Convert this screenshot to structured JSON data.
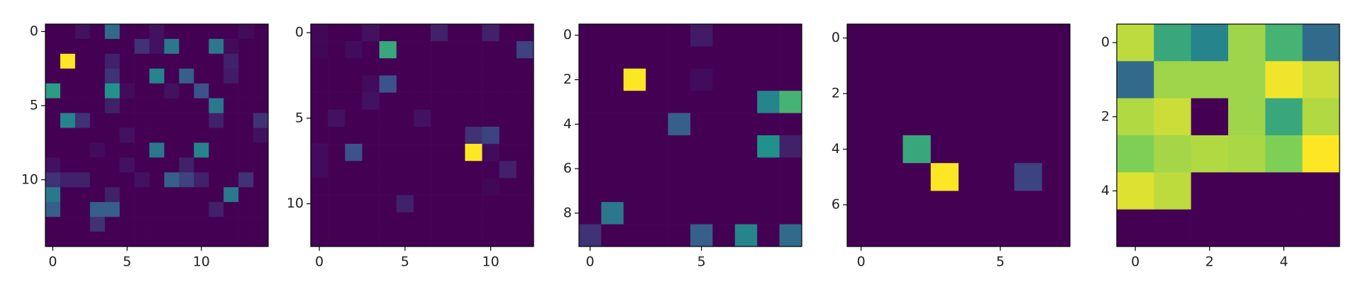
{
  "chart_data": [
    {
      "type": "heatmap",
      "colormap": "viridis",
      "clim": [
        0,
        1
      ],
      "xlim": [
        -0.5,
        14.5
      ],
      "ylim": [
        14.5,
        -0.5
      ],
      "xticks": [
        0,
        5,
        10
      ],
      "yticks": [
        0,
        5,
        10
      ],
      "values": [
        [
          0,
          0,
          0.05,
          0,
          0.35,
          0,
          0,
          0.05,
          0,
          0,
          0,
          0,
          0,
          0.03,
          0
        ],
        [
          0,
          0,
          0,
          0,
          0,
          0,
          0.15,
          0.05,
          0.4,
          0,
          0,
          0.4,
          0.03,
          0,
          0
        ],
        [
          0,
          1,
          0,
          0,
          0.1,
          0,
          0,
          0,
          0,
          0,
          0,
          0,
          0.1,
          0,
          0
        ],
        [
          0,
          0,
          0,
          0,
          0.15,
          0,
          0,
          0.45,
          0,
          0.3,
          0,
          0,
          0.08,
          0,
          0
        ],
        [
          0.55,
          0,
          0,
          0,
          0.5,
          0.03,
          0,
          0,
          0.05,
          0,
          0.25,
          0,
          0,
          0,
          0
        ],
        [
          0,
          0,
          0,
          0,
          0.1,
          0,
          0,
          0,
          0,
          0,
          0,
          0.4,
          0,
          0,
          0
        ],
        [
          0,
          0.45,
          0.15,
          0,
          0,
          0,
          0,
          0,
          0,
          0,
          0,
          0.1,
          0,
          0,
          0.15
        ],
        [
          0,
          0,
          0,
          0,
          0,
          0.05,
          0,
          0,
          0,
          0,
          0,
          0,
          0,
          0,
          0.05
        ],
        [
          0,
          0,
          0,
          0.03,
          0,
          0,
          0,
          0.4,
          0,
          0,
          0.45,
          0,
          0,
          0,
          0
        ],
        [
          0.05,
          0,
          0,
          0,
          0,
          0.05,
          0,
          0,
          0,
          0.1,
          0,
          0,
          0,
          0,
          0
        ],
        [
          0.15,
          0.1,
          0.1,
          0,
          0,
          0,
          0.05,
          0,
          0.3,
          0.2,
          0.1,
          0,
          0,
          0.15,
          0
        ],
        [
          0.4,
          0,
          0,
          0,
          0.1,
          0,
          0,
          0,
          0,
          0,
          0,
          0,
          0.4,
          0,
          0
        ],
        [
          0.3,
          0,
          0,
          0.3,
          0.3,
          0,
          0,
          0,
          0,
          0,
          0,
          0.1,
          0,
          0,
          0
        ],
        [
          0,
          0,
          0,
          0.15,
          0,
          0,
          0,
          0,
          0,
          0,
          0,
          0,
          0,
          0,
          0
        ],
        [
          0,
          0,
          0,
          0,
          0,
          0,
          0,
          0,
          0,
          0,
          0,
          0,
          0,
          0,
          0
        ]
      ]
    },
    {
      "type": "heatmap",
      "colormap": "viridis",
      "clim": [
        0,
        1
      ],
      "xlim": [
        -0.5,
        12.5
      ],
      "ylim": [
        12.5,
        -0.5
      ],
      "xticks": [
        0,
        5,
        10
      ],
      "yticks": [
        0,
        5,
        10
      ],
      "values": [
        [
          0.02,
          0,
          0,
          0.05,
          0,
          0,
          0,
          0.1,
          0,
          0,
          0.1,
          0,
          0
        ],
        [
          0.02,
          0,
          0.03,
          0,
          0.6,
          0,
          0,
          0,
          0,
          0,
          0,
          0,
          0.2
        ],
        [
          0,
          0,
          0,
          0,
          0,
          0,
          0,
          0,
          0,
          0,
          0,
          0,
          0
        ],
        [
          0,
          0,
          0,
          0.03,
          0.25,
          0,
          0,
          0,
          0,
          0,
          0,
          0,
          0
        ],
        [
          0,
          0,
          0,
          0.05,
          0,
          0,
          0,
          0,
          0,
          0,
          0,
          0,
          0
        ],
        [
          0,
          0.05,
          0,
          0,
          0,
          0,
          0.05,
          0,
          0,
          0,
          0,
          0,
          0
        ],
        [
          0,
          0,
          0,
          0,
          0,
          0,
          0,
          0,
          0,
          0.15,
          0.2,
          0,
          0
        ],
        [
          0.03,
          0,
          0.25,
          0,
          0,
          0,
          0,
          0,
          0,
          1,
          0.03,
          0,
          0
        ],
        [
          0.03,
          0,
          0,
          0,
          0,
          0,
          0,
          0,
          0,
          0,
          0,
          0.1,
          0
        ],
        [
          0,
          0,
          0,
          0,
          0,
          0,
          0,
          0,
          0,
          0,
          0.02,
          0,
          0
        ],
        [
          0,
          0,
          0,
          0,
          0,
          0.1,
          0,
          0,
          0,
          0,
          0,
          0,
          0
        ],
        [
          0,
          0,
          0,
          0,
          0,
          0,
          0,
          0,
          0,
          0,
          0,
          0,
          0
        ],
        [
          0,
          0,
          0,
          0,
          0,
          0,
          0,
          0,
          0,
          0,
          0,
          0,
          0
        ]
      ]
    },
    {
      "type": "heatmap",
      "colormap": "viridis",
      "clim": [
        0,
        1
      ],
      "xlim": [
        -0.5,
        9.5
      ],
      "ylim": [
        9.5,
        -0.5
      ],
      "xticks": [
        0,
        5
      ],
      "yticks": [
        0,
        2,
        4,
        6,
        8
      ],
      "values": [
        [
          0,
          0,
          0,
          0,
          0,
          0.08,
          0,
          0,
          0,
          0
        ],
        [
          0,
          0,
          0,
          0,
          0,
          0,
          0,
          0,
          0,
          0
        ],
        [
          0,
          0,
          1,
          0,
          0,
          0.03,
          0,
          0,
          0,
          0
        ],
        [
          0,
          0,
          0,
          0,
          0,
          0,
          0,
          0,
          0.45,
          0.65
        ],
        [
          0,
          0,
          0,
          0,
          0.3,
          0,
          0,
          0,
          0,
          0
        ],
        [
          0,
          0,
          0,
          0,
          0,
          0,
          0,
          0,
          0.5,
          0.1
        ],
        [
          0,
          0,
          0,
          0,
          0,
          0,
          0,
          0,
          0,
          0
        ],
        [
          0,
          0,
          0,
          0,
          0,
          0,
          0,
          0,
          0,
          0
        ],
        [
          0,
          0.4,
          0,
          0,
          0,
          0,
          0,
          0,
          0,
          0
        ],
        [
          0.15,
          0,
          0,
          0,
          0,
          0.3,
          0,
          0.45,
          0,
          0.35
        ]
      ]
    },
    {
      "type": "heatmap",
      "colormap": "viridis",
      "clim": [
        0,
        1
      ],
      "xlim": [
        -0.5,
        7.5
      ],
      "ylim": [
        7.5,
        -0.5
      ],
      "xticks": [
        0,
        5
      ],
      "yticks": [
        0,
        2,
        4,
        6
      ],
      "values": [
        [
          0,
          0,
          0,
          0,
          0,
          0,
          0,
          0
        ],
        [
          0,
          0,
          0,
          0,
          0,
          0,
          0,
          0
        ],
        [
          0,
          0,
          0,
          0,
          0,
          0,
          0,
          0
        ],
        [
          0,
          0,
          0,
          0,
          0,
          0,
          0,
          0
        ],
        [
          0,
          0,
          0.6,
          0,
          0,
          0,
          0,
          0
        ],
        [
          0,
          0,
          0,
          1,
          0,
          0,
          0.2,
          0
        ],
        [
          0,
          0,
          0,
          0,
          0,
          0,
          0,
          0
        ],
        [
          0,
          0,
          0,
          0,
          0,
          0,
          0,
          0
        ]
      ]
    },
    {
      "type": "heatmap",
      "colormap": "viridis",
      "clim": [
        0,
        1
      ],
      "xlim": [
        -0.5,
        5.5
      ],
      "ylim": [
        5.5,
        -0.5
      ],
      "xticks": [
        0,
        2,
        4
      ],
      "yticks": [
        0,
        2,
        4
      ],
      "values": [
        [
          0.9,
          0.6,
          0.45,
          0.85,
          0.65,
          0.35
        ],
        [
          0.35,
          0.85,
          0.85,
          0.85,
          0.98,
          0.92
        ],
        [
          0.88,
          0.92,
          0,
          0.85,
          0.6,
          0.88
        ],
        [
          0.8,
          0.86,
          0.88,
          0.87,
          0.8,
          1
        ],
        [
          0.95,
          0.9,
          0,
          0,
          0,
          0
        ],
        [
          0,
          0,
          0,
          0,
          0,
          0
        ]
      ]
    }
  ]
}
